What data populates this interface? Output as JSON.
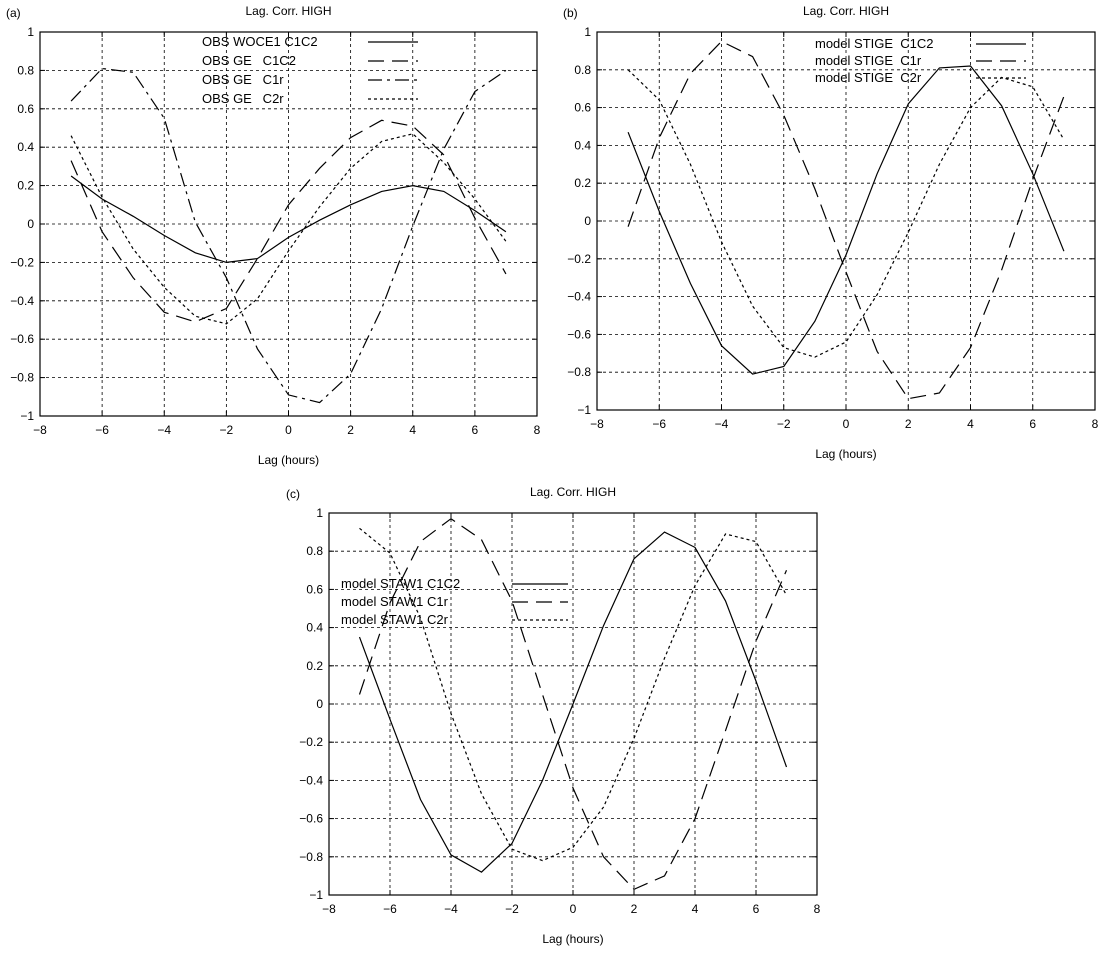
{
  "chart_data": [
    {
      "type": "line",
      "panel_label": "(a)",
      "title": "Lag. Corr. HIGH",
      "xlabel": "Lag (hours)",
      "ylabel": "",
      "xlim": [
        -8,
        8
      ],
      "ylim": [
        -1,
        1
      ],
      "xticks": [
        -8,
        -6,
        -4,
        -2,
        0,
        2,
        4,
        6,
        8
      ],
      "yticks": [
        -1,
        -0.8,
        -0.6,
        -0.4,
        -0.2,
        0,
        0.2,
        0.4,
        0.6,
        0.8,
        1
      ],
      "grid": true,
      "legend_position": "top",
      "x": [
        -7,
        -6,
        -5,
        -4,
        -3,
        -2,
        -1,
        0,
        1,
        2,
        3,
        4,
        5,
        6,
        7
      ],
      "series": [
        {
          "name": "OBS WOCE1 C1C2",
          "style": "solid",
          "values": [
            0.25,
            0.13,
            0.04,
            -0.06,
            -0.15,
            -0.2,
            -0.18,
            -0.07,
            0.02,
            0.1,
            0.17,
            0.2,
            0.17,
            0.07,
            -0.04
          ]
        },
        {
          "name": "OBS GE   C1C2",
          "style": "dashed",
          "values": [
            0.33,
            -0.04,
            -0.28,
            -0.46,
            -0.51,
            -0.44,
            -0.18,
            0.1,
            0.29,
            0.45,
            0.54,
            0.51,
            0.36,
            0.03,
            -0.26
          ]
        },
        {
          "name": "OBS GE   C1r",
          "style": "dashdot",
          "values": [
            0.64,
            0.81,
            0.79,
            0.55,
            0.01,
            -0.28,
            -0.65,
            -0.89,
            -0.93,
            -0.78,
            -0.44,
            -0.01,
            0.39,
            0.69,
            0.8
          ]
        },
        {
          "name": "OBS GE   C2r",
          "style": "dotted",
          "values": [
            0.46,
            0.14,
            -0.13,
            -0.33,
            -0.48,
            -0.52,
            -0.39,
            -0.14,
            0.09,
            0.29,
            0.43,
            0.47,
            0.32,
            0.13,
            -0.09
          ]
        }
      ]
    },
    {
      "type": "line",
      "panel_label": "(b)",
      "title": "Lag. Corr. HIGH",
      "xlabel": "Lag (hours)",
      "ylabel": "",
      "xlim": [
        -8,
        8
      ],
      "ylim": [
        -1,
        1
      ],
      "xticks": [
        -8,
        -6,
        -4,
        -2,
        0,
        2,
        4,
        6,
        8
      ],
      "yticks": [
        -1,
        -0.8,
        -0.6,
        -0.4,
        -0.2,
        0,
        0.2,
        0.4,
        0.6,
        0.8,
        1
      ],
      "grid": true,
      "legend_position": "top-right",
      "x": [
        -7,
        -6,
        -5,
        -4,
        -3,
        -2,
        -1,
        0,
        1,
        2,
        3,
        4,
        5,
        6,
        7
      ],
      "series": [
        {
          "name": "model STIGE  C1C2",
          "style": "solid",
          "values": [
            0.47,
            0.05,
            -0.33,
            -0.66,
            -0.81,
            -0.77,
            -0.53,
            -0.18,
            0.25,
            0.62,
            0.81,
            0.82,
            0.61,
            0.25,
            -0.16
          ]
        },
        {
          "name": "model STIGE  C1r",
          "style": "dashed",
          "values": [
            -0.03,
            0.44,
            0.78,
            0.95,
            0.87,
            0.56,
            0.17,
            -0.27,
            -0.69,
            -0.94,
            -0.91,
            -0.67,
            -0.26,
            0.22,
            0.66
          ]
        },
        {
          "name": "model STIGE  C2r",
          "style": "dotted",
          "values": [
            0.8,
            0.64,
            0.3,
            -0.11,
            -0.45,
            -0.67,
            -0.72,
            -0.64,
            -0.39,
            -0.06,
            0.3,
            0.6,
            0.76,
            0.71,
            0.43
          ]
        }
      ]
    },
    {
      "type": "line",
      "panel_label": "(c)",
      "title": "Lag. Corr. HIGH",
      "xlabel": "Lag (hours)",
      "ylabel": "",
      "xlim": [
        -8,
        8
      ],
      "ylim": [
        -1,
        1
      ],
      "xticks": [
        -8,
        -6,
        -4,
        -2,
        0,
        2,
        4,
        6,
        8
      ],
      "yticks": [
        -1,
        -0.8,
        -0.6,
        -0.4,
        -0.2,
        0,
        0.2,
        0.4,
        0.6,
        0.8,
        1
      ],
      "grid": true,
      "legend_position": "left",
      "x": [
        -7,
        -6,
        -5,
        -4,
        -3,
        -2,
        -1,
        0,
        1,
        2,
        3,
        4,
        5,
        6,
        7
      ],
      "series": [
        {
          "name": "model STAW1 C1C2",
          "style": "solid",
          "values": [
            0.35,
            -0.08,
            -0.5,
            -0.79,
            -0.88,
            -0.73,
            -0.4,
            0.0,
            0.41,
            0.76,
            0.9,
            0.82,
            0.54,
            0.12,
            -0.33
          ]
        },
        {
          "name": "model STAW1 C1r",
          "style": "dashed",
          "values": [
            0.05,
            0.53,
            0.85,
            0.97,
            0.86,
            0.54,
            0.05,
            -0.44,
            -0.8,
            -0.97,
            -0.9,
            -0.6,
            -0.14,
            0.33,
            0.7
          ]
        },
        {
          "name": "model STAW1 C2r",
          "style": "dotted",
          "values": [
            0.92,
            0.79,
            0.45,
            -0.05,
            -0.47,
            -0.76,
            -0.82,
            -0.75,
            -0.54,
            -0.18,
            0.24,
            0.62,
            0.89,
            0.85,
            0.57
          ]
        }
      ]
    }
  ]
}
